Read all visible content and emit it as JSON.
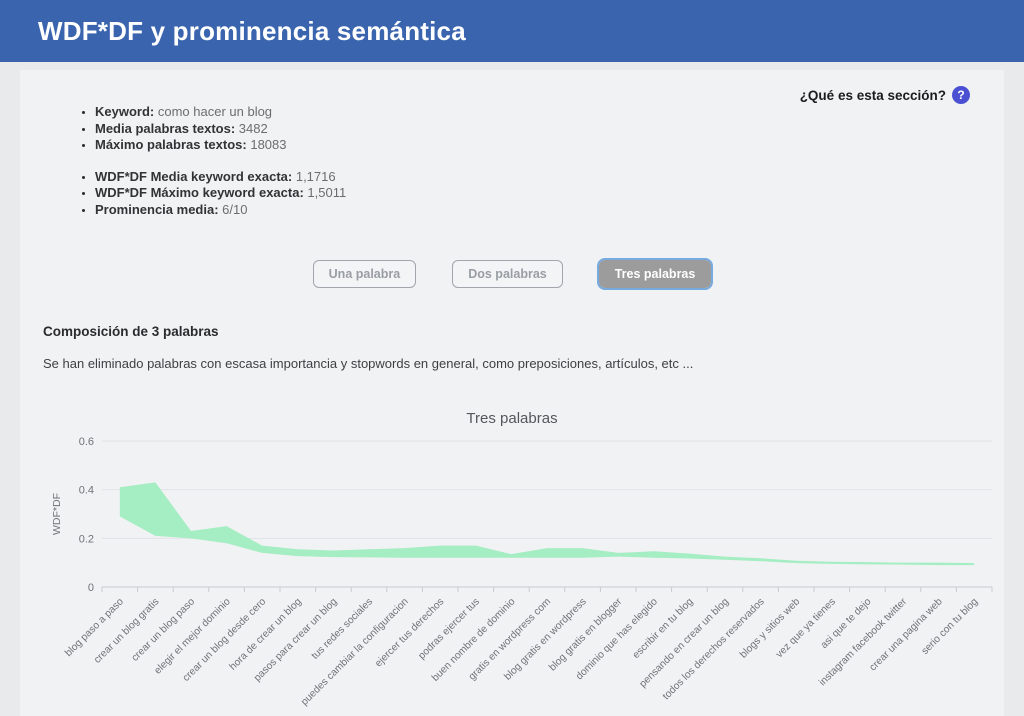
{
  "header": {
    "title": "WDF*DF y prominencia semántica"
  },
  "help": {
    "label": "¿Qué es esta sección?",
    "icon_glyph": "?"
  },
  "stats_primary": [
    {
      "label": "Keyword:",
      "value": "como hacer un blog"
    },
    {
      "label": "Media palabras textos:",
      "value": "3482"
    },
    {
      "label": "Máximo palabras textos:",
      "value": "18083"
    }
  ],
  "stats_secondary": [
    {
      "label": "WDF*DF Media keyword exacta:",
      "value": "1,1716"
    },
    {
      "label": "WDF*DF Máximo keyword exacta:",
      "value": "1,5011"
    },
    {
      "label": "Prominencia media:",
      "value": "6/10"
    }
  ],
  "tabs": [
    {
      "label": "Una palabra",
      "selected": false
    },
    {
      "label": "Dos palabras",
      "selected": false
    },
    {
      "label": "Tres palabras",
      "selected": true
    }
  ],
  "section": {
    "heading": "Composición de 3 palabras",
    "description": "Se han eliminado palabras con escasa importancia y stopwords en general, como preposiciones, artículos, etc ..."
  },
  "colors": {
    "header_bg": "#3a65ae",
    "help_icon_bg": "#4b50d2",
    "area_fill": "#a5edc2",
    "tab_selected_bg": "#9c9c9c",
    "focus_ring": "#77aadf",
    "grid_line": "#e2e3e6",
    "axis_line": "#c8cace",
    "axis_text": "#6f7277",
    "chart_title_text": "#54585c"
  },
  "chart_data": {
    "type": "area",
    "title": "Tres palabras",
    "xlabel": "",
    "ylabel": "WDF*DF",
    "ylim": [
      0,
      0.6
    ],
    "yticks": [
      0,
      0.2,
      0.4,
      0.6
    ],
    "ytick_labels": [
      "0",
      "0.2",
      "0.4",
      "0.6"
    ],
    "grid": true,
    "legend_position": "none",
    "categories": [
      "blog paso a paso",
      "crear un blog gratis",
      "crear un blog paso",
      "elegir el mejor dominio",
      "crear un blog desde cero",
      "hora de crear un blog",
      "pasos para crear un blog",
      "tus redes sociales",
      "puedes cambiar la configuracion",
      "ejercer tus derechos",
      "podras ejercer tus",
      "buen nombre de dominio",
      "gratis en wordpress com",
      "blog gratis en wordpress",
      "blog gratis en blogger",
      "dominio que has elegido",
      "escribir en tu blog",
      "pensando en crear un blog",
      "todos los derechos reservados",
      "blogs y sitios web",
      "vez que ya tienes",
      "asi que te dejo",
      "instagram facebook twitter",
      "crear una pagina web",
      "serio con tu blog"
    ],
    "series": [
      {
        "name": "upper",
        "values": [
          0.41,
          0.43,
          0.23,
          0.25,
          0.17,
          0.155,
          0.15,
          0.155,
          0.16,
          0.17,
          0.17,
          0.135,
          0.16,
          0.16,
          0.14,
          0.147,
          0.137,
          0.125,
          0.118,
          0.108,
          0.104,
          0.102,
          0.1,
          0.1,
          0.098
        ]
      },
      {
        "name": "lower",
        "values": [
          0.29,
          0.21,
          0.2,
          0.18,
          0.14,
          0.127,
          0.123,
          0.122,
          0.12,
          0.12,
          0.12,
          0.12,
          0.12,
          0.12,
          0.125,
          0.12,
          0.117,
          0.112,
          0.106,
          0.098,
          0.095,
          0.093,
          0.092,
          0.09,
          0.09
        ]
      }
    ]
  }
}
